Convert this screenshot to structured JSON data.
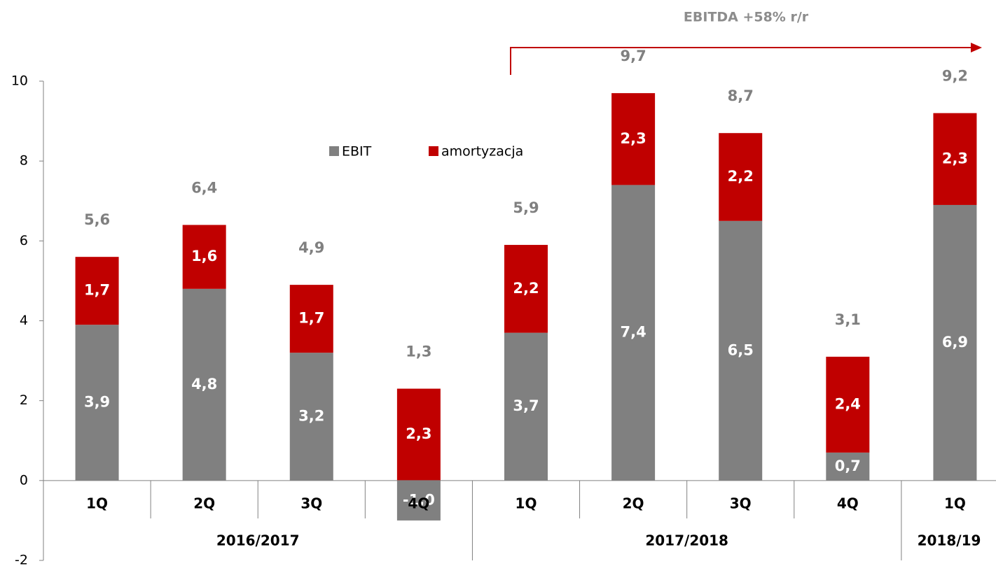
{
  "chart_data": {
    "type": "stacked_bar",
    "annotation": "EBITDA +58% r/r",
    "groups": [
      {
        "name": "2016/2017",
        "categories": [
          "1Q",
          "2Q",
          "3Q",
          "4Q"
        ]
      },
      {
        "name": "2017/2018",
        "categories": [
          "1Q",
          "2Q",
          "3Q",
          "4Q"
        ]
      },
      {
        "name": "2018/19",
        "categories": [
          "1Q"
        ]
      }
    ],
    "series": [
      {
        "name": "EBIT",
        "color": "#808080",
        "values": [
          3.9,
          4.8,
          3.2,
          -1.0,
          3.7,
          7.4,
          6.5,
          0.7,
          6.9
        ],
        "value_labels": [
          "3,9",
          "4,8",
          "3,2",
          "-1,0",
          "3,7",
          "7,4",
          "6,5",
          "0,7",
          "6,9"
        ]
      },
      {
        "name": "amortyzacja",
        "color": "#c00000",
        "values": [
          1.7,
          1.6,
          1.7,
          2.3,
          2.2,
          2.3,
          2.2,
          2.4,
          2.3
        ],
        "value_labels": [
          "1,7",
          "1,6",
          "1,7",
          "2,3",
          "2,2",
          "2,3",
          "2,2",
          "2,4",
          "2,3"
        ]
      }
    ],
    "totals": {
      "values": [
        5.6,
        6.4,
        4.9,
        1.3,
        5.9,
        9.7,
        8.7,
        3.1,
        9.2
      ],
      "value_labels": [
        "5,6",
        "6,4",
        "4,9",
        "1,3",
        "5,9",
        "9,7",
        "8,7",
        "3,1",
        "9,2"
      ]
    },
    "ylim": [
      -2,
      10
    ],
    "yticks": [
      -2,
      0,
      2,
      4,
      6,
      8,
      10
    ],
    "grid": false
  }
}
